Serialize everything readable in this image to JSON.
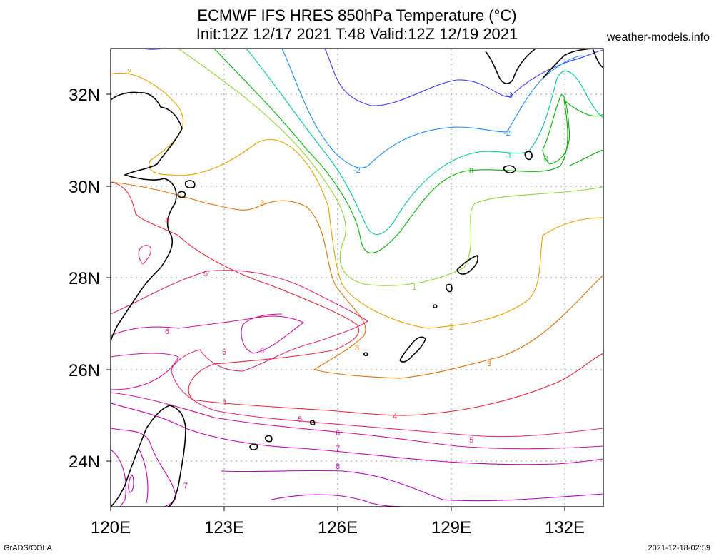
{
  "title_line1": "ECMWF IFS HRES 850hPa Temperature (°C)",
  "title_line2": "Init:12Z 12/17 2021 T:48 Valid:12Z 12/19 2021",
  "credit": "weather-models.info",
  "footer_left": "GrADS/COLA",
  "footer_right": "2021-12-18-02:59",
  "lon_labels": [
    "120E",
    "123E",
    "126E",
    "129E",
    "132E"
  ],
  "lat_labels": [
    "32N",
    "30N",
    "28N",
    "26N",
    "24N"
  ],
  "contour_labels": [
    "-3",
    "-2",
    "-2",
    "-1",
    "0",
    "0",
    "1",
    "2",
    "2",
    "3",
    "3",
    "3",
    "4",
    "4",
    "4",
    "5",
    "5",
    "5",
    "5",
    "6",
    "6",
    "6",
    "7",
    "7",
    "8"
  ],
  "colors": {
    "m3": "#3b3bff",
    "m2": "#1a8cff",
    "m1": "#00c8a0",
    "c0": "#00b400",
    "c1": "#8cd632",
    "c2": "#e8a000",
    "c3": "#e07000",
    "c4": "#e8283c",
    "c5": "#e0287a",
    "c6": "#d2149a",
    "c7": "#c800b4",
    "coast": "#000000",
    "grid": "#999999"
  },
  "chart_data": {
    "type": "contour-map",
    "variable": "850hPa Temperature (°C)",
    "lon_range": [
      120,
      133
    ],
    "lat_range": [
      23,
      33
    ],
    "grid": true,
    "contour_levels": [
      -3,
      -2,
      -1,
      0,
      1,
      2,
      3,
      4,
      5,
      6,
      7,
      8
    ]
  }
}
